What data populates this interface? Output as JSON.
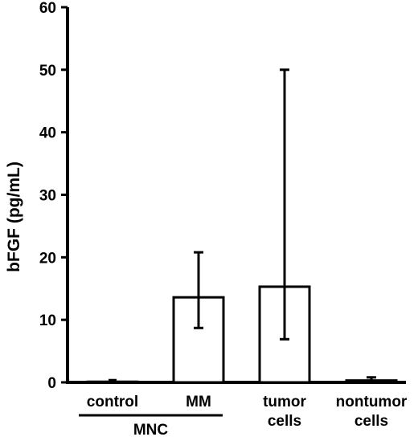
{
  "chart_data": {
    "type": "bar",
    "title": "",
    "ylabel": "bFGF (pg/mL)",
    "xlabel": "",
    "ylim": [
      0,
      60
    ],
    "yticks": [
      0,
      10,
      20,
      30,
      40,
      50,
      60
    ],
    "grid": false,
    "legend": "none",
    "categories": [
      {
        "lines": [
          "control"
        ],
        "value": 0.1,
        "err_low": 0.1,
        "err_high": 0.1
      },
      {
        "lines": [
          "MM"
        ],
        "value": 13.6,
        "err_low": 8.7,
        "err_high": 20.8
      },
      {
        "lines": [
          "tumor",
          "cells"
        ],
        "value": 15.3,
        "err_low": 6.9,
        "err_high": 50.0
      },
      {
        "lines": [
          "nontumor",
          "cells"
        ],
        "value": 0.3,
        "err_low": 0.0,
        "err_high": 0.8
      }
    ],
    "group_label": {
      "text": "MNC",
      "spans": [
        "control",
        "MM"
      ]
    },
    "bar_fill": "#ffffff",
    "bar_stroke": "#000000"
  }
}
